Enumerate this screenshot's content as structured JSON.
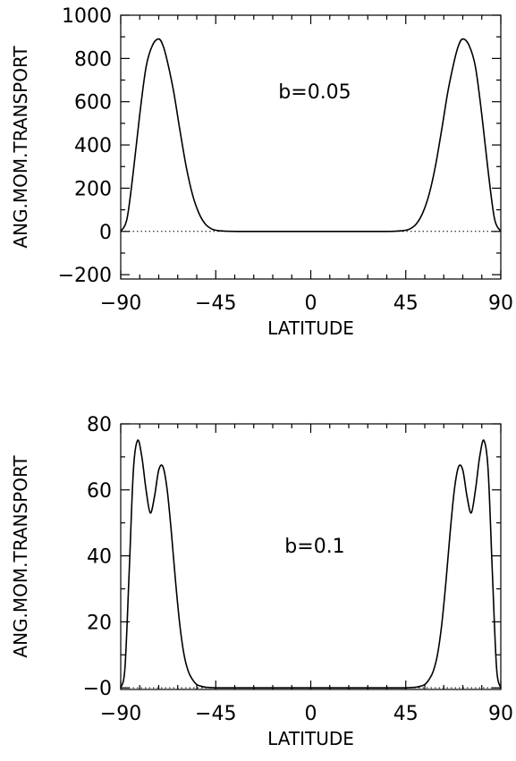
{
  "chart_data": [
    {
      "type": "line",
      "title": "",
      "xlabel": "LATITUDE",
      "ylabel": "ANG.MOM.TRANSPORT",
      "annotation": "b=0.05",
      "xlim": [
        -90,
        90
      ],
      "ylim": [
        -220,
        1000
      ],
      "xticks": [
        -90,
        -45,
        0,
        45,
        90
      ],
      "xtick_labels": [
        "−90",
        "−45",
        "0",
        "45",
        "90"
      ],
      "yticks": [
        -200,
        0,
        200,
        400,
        600,
        800,
        1000
      ],
      "ytick_labels": [
        "−200",
        "0",
        "200",
        "400",
        "600",
        "800",
        "1000"
      ],
      "zero_line": true,
      "grid": false,
      "series": [
        {
          "x": [
            -90,
            -87,
            -84,
            -81,
            -78,
            -75,
            -72,
            -70,
            -68,
            -65,
            -62,
            -59,
            -56,
            -53,
            -50,
            -47,
            -44,
            -40,
            -35,
            -30,
            -25,
            -20,
            -15,
            -10,
            -5,
            0,
            5,
            10,
            15,
            20,
            25,
            30,
            35,
            40,
            44,
            47,
            50,
            53,
            56,
            59,
            62,
            65,
            68,
            70,
            72,
            75,
            78,
            81,
            84,
            87,
            90
          ],
          "y": [
            0,
            60,
            280,
            540,
            760,
            860,
            890,
            860,
            790,
            650,
            470,
            300,
            170,
            85,
            35,
            12,
            4,
            1,
            0,
            0,
            0,
            0,
            0,
            0,
            0,
            0,
            0,
            0,
            0,
            0,
            0,
            0,
            0,
            1,
            4,
            12,
            35,
            85,
            170,
            300,
            470,
            650,
            790,
            860,
            890,
            860,
            760,
            540,
            280,
            60,
            0
          ]
        }
      ]
    },
    {
      "type": "line",
      "title": "",
      "xlabel": "LATITUDE",
      "ylabel": "ANG.MOM.TRANSPORT",
      "annotation": "b=0.1",
      "xlim": [
        -90,
        90
      ],
      "ylim": [
        -0.5,
        80
      ],
      "xticks": [
        -90,
        -45,
        0,
        45,
        90
      ],
      "xtick_labels": [
        "−90",
        "−45",
        "0",
        "45",
        "90"
      ],
      "yticks": [
        0,
        20,
        40,
        60,
        80
      ],
      "ytick_labels": [
        "−0",
        "20",
        "40",
        "60",
        "80"
      ],
      "zero_line": true,
      "grid": false,
      "series": [
        {
          "x": [
            -90,
            -88,
            -86,
            -84,
            -82,
            -80,
            -78,
            -76,
            -74,
            -72,
            -70,
            -68,
            -66,
            -64,
            -62,
            -60,
            -58,
            -56,
            -54,
            -52,
            -50,
            -47,
            -44,
            -40,
            -35,
            -30,
            -20,
            -10,
            0,
            10,
            20,
            30,
            35,
            40,
            44,
            47,
            50,
            52,
            54,
            56,
            58,
            60,
            62,
            64,
            66,
            68,
            70,
            72,
            74,
            76,
            78,
            80,
            82,
            84,
            86,
            88,
            90
          ],
          "y": [
            0,
            6,
            35,
            66,
            75,
            70,
            60,
            53,
            58,
            66,
            67,
            60,
            47,
            32,
            19,
            10,
            5,
            2.5,
            1,
            0.5,
            0.2,
            0.05,
            0,
            0,
            0,
            0,
            0,
            0,
            0,
            0,
            0,
            0,
            0,
            0,
            0,
            0.05,
            0.2,
            0.5,
            1,
            2.5,
            5,
            10,
            19,
            32,
            47,
            60,
            67,
            66,
            58,
            53,
            60,
            70,
            75,
            66,
            35,
            6,
            0
          ]
        }
      ]
    }
  ]
}
